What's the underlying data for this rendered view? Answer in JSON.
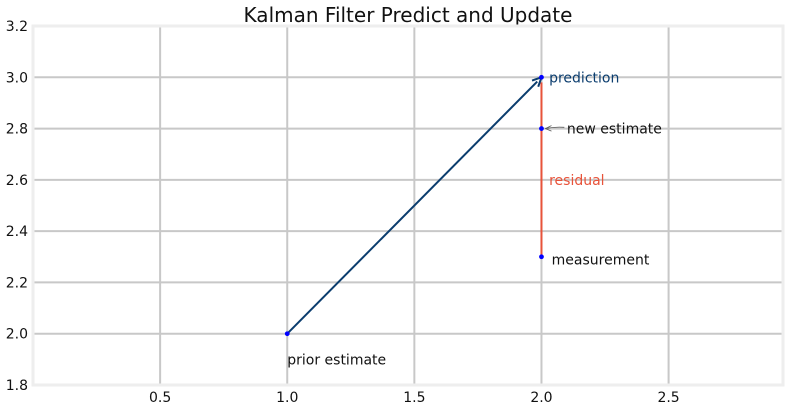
{
  "chart_data": {
    "type": "line",
    "title": "Kalman Filter Predict and Update",
    "xlabel": "",
    "ylabel": "",
    "xlim": [
      0.0,
      2.95
    ],
    "ylim": [
      1.8,
      3.2
    ],
    "xticks": [
      0.5,
      1.0,
      1.5,
      2.0,
      2.5
    ],
    "xtick_labels": [
      "0.5",
      "1.0",
      "1.5",
      "2.0",
      "2.5"
    ],
    "yticks": [
      1.8,
      2.0,
      2.2,
      2.4,
      2.6,
      2.8,
      3.0,
      3.2
    ],
    "ytick_labels": [
      "1.8",
      "2.0",
      "2.2",
      "2.4",
      "2.6",
      "2.8",
      "3.0",
      "3.2"
    ],
    "grid": true,
    "points": [
      {
        "x": 1.0,
        "y": 2.0,
        "label": "prior estimate"
      },
      {
        "x": 2.0,
        "y": 3.0,
        "label": "prediction"
      },
      {
        "x": 2.0,
        "y": 2.8,
        "label": "new estimate"
      },
      {
        "x": 2.0,
        "y": 2.3,
        "label": "measurement"
      }
    ],
    "arrows": [
      {
        "from": [
          1.0,
          2.0
        ],
        "to": [
          2.0,
          3.0
        ],
        "color": "#0b3d6e"
      }
    ],
    "segments": [
      {
        "from": [
          2.0,
          2.98
        ],
        "to": [
          2.0,
          2.3
        ],
        "label": "residual",
        "color": "#e8533a"
      }
    ],
    "annotations": [
      {
        "text": "prediction",
        "x": 2.03,
        "y": 3.0,
        "color": "#0b3d6e"
      },
      {
        "text": "new estimate",
        "x": 2.1,
        "y": 2.8,
        "color": "#111111"
      },
      {
        "text": "residual",
        "x": 2.03,
        "y": 2.6,
        "color": "#e8533a"
      },
      {
        "text": "measurement",
        "x": 2.04,
        "y": 2.29,
        "color": "#111111"
      },
      {
        "text": "prior estimate",
        "x": 1.0,
        "y": 1.9,
        "color": "#111111"
      }
    ],
    "colors": {
      "point": "#0000ff",
      "arrow": "#0b3d6e",
      "residual": "#e8533a",
      "grid": "#c8c8c8",
      "text": "#111111"
    }
  }
}
